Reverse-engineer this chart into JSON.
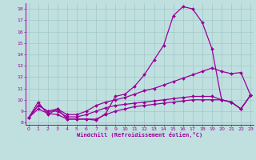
{
  "xlabel": "Windchill (Refroidissement éolien,°C)",
  "bg_color": "#c0e0e0",
  "line_color": "#990099",
  "grid_color": "#a0c8c8",
  "x_ticks": [
    0,
    1,
    2,
    3,
    4,
    5,
    6,
    7,
    8,
    9,
    10,
    11,
    12,
    13,
    14,
    15,
    16,
    17,
    18,
    19,
    20,
    21,
    22,
    23
  ],
  "y_ticks": [
    8,
    9,
    10,
    11,
    12,
    13,
    14,
    15,
    16,
    17,
    18
  ],
  "ylim": [
    7.8,
    18.5
  ],
  "xlim": [
    -0.3,
    23.3
  ],
  "series": {
    "peak": [
      8.4,
      9.8,
      8.7,
      9.2,
      8.3,
      8.3,
      8.3,
      8.2,
      8.8,
      10.3,
      10.5,
      11.2,
      12.2,
      13.5,
      14.8,
      17.4,
      18.2,
      18.0,
      16.8,
      14.5,
      10.0,
      9.8,
      9.2,
      10.4
    ],
    "diag": [
      8.4,
      9.5,
      9.0,
      9.2,
      8.7,
      8.7,
      9.0,
      9.5,
      9.8,
      10.0,
      10.2,
      10.5,
      10.8,
      11.0,
      11.3,
      11.6,
      11.9,
      12.2,
      12.5,
      12.8,
      12.5,
      12.3,
      12.4,
      10.4
    ],
    "flat1": [
      8.4,
      9.5,
      9.0,
      9.0,
      8.5,
      8.5,
      8.7,
      9.0,
      9.3,
      9.5,
      9.6,
      9.7,
      9.8,
      9.9,
      10.0,
      10.1,
      10.2,
      10.3,
      10.3,
      10.3,
      10.0,
      9.8,
      9.2,
      10.4
    ],
    "flat2": [
      8.4,
      9.2,
      8.8,
      8.7,
      8.3,
      8.3,
      8.3,
      8.3,
      8.7,
      9.0,
      9.2,
      9.4,
      9.5,
      9.6,
      9.7,
      9.8,
      9.9,
      10.0,
      10.0,
      10.0,
      10.0,
      9.8,
      9.2,
      10.4
    ]
  }
}
